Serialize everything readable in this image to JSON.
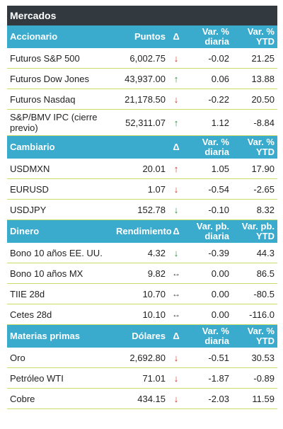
{
  "title": "Mercados",
  "sections": [
    {
      "headers": [
        "Accionario",
        "Puntos",
        "Δ",
        "Var. % diaria",
        "Var. % YTD"
      ],
      "rows": [
        {
          "name": "Futuros S&P 500",
          "value": "6,002.75",
          "arrow": "down",
          "daily": "-0.02",
          "ytd": "21.25"
        },
        {
          "name": "Futuros Dow Jones",
          "value": "43,937.00",
          "arrow": "up",
          "daily": "0.06",
          "ytd": "13.88"
        },
        {
          "name": "Futuros Nasdaq",
          "value": "21,178.50",
          "arrow": "down",
          "daily": "-0.22",
          "ytd": "20.50"
        },
        {
          "name": "S&P/BMV IPC (cierre previo)",
          "value": "52,311.07",
          "arrow": "up",
          "daily": "1.12",
          "ytd": "-8.84"
        }
      ]
    },
    {
      "headers": [
        "Cambiario",
        "",
        "Δ",
        "Var. % diaria",
        "Var. % YTD"
      ],
      "rows": [
        {
          "name": "USDMXN",
          "value": "20.01",
          "arrow": "up-red",
          "daily": "1.05",
          "ytd": "17.90"
        },
        {
          "name": "EURUSD",
          "value": "1.07",
          "arrow": "down",
          "daily": "-0.54",
          "ytd": "-2.65"
        },
        {
          "name": "USDJPY",
          "value": "152.78",
          "arrow": "down-green",
          "daily": "-0.10",
          "ytd": "8.32"
        }
      ]
    },
    {
      "headers": [
        "Dinero",
        "Rendimiento",
        "Δ",
        "Var. pb. diaria",
        "Var. pb. YTD"
      ],
      "rows": [
        {
          "name": "Bono 10 años EE. UU.",
          "value": "4.32",
          "arrow": "down-green",
          "daily": "-0.39",
          "ytd": "44.3"
        },
        {
          "name": "Bono 10 años MX",
          "value": "9.82",
          "arrow": "flat",
          "daily": "0.00",
          "ytd": "86.5"
        },
        {
          "name": "TIIE 28d",
          "value": "10.70",
          "arrow": "flat",
          "daily": "0.00",
          "ytd": "-80.5"
        },
        {
          "name": "Cetes 28d",
          "value": "10.10",
          "arrow": "flat",
          "daily": "0.00",
          "ytd": "-116.0"
        }
      ]
    },
    {
      "headers": [
        "Materias primas",
        "Dólares",
        "Δ",
        "Var. % diaria",
        "Var. % YTD"
      ],
      "rows": [
        {
          "name": "Oro",
          "value": "2,692.80",
          "arrow": "down",
          "daily": "-0.51",
          "ytd": "30.53"
        },
        {
          "name": "Petróleo WTI",
          "value": "71.01",
          "arrow": "down",
          "daily": "-1.87",
          "ytd": "-0.89"
        },
        {
          "name": "Cobre",
          "value": "434.15",
          "arrow": "down",
          "daily": "-2.03",
          "ytd": "11.59"
        }
      ]
    }
  ],
  "arrow_glyphs": {
    "up": "↑",
    "up-red": "↑",
    "down": "↓",
    "down-green": "↓",
    "flat": "↔"
  },
  "colors": {
    "header_bg": "#3aaacd",
    "title_bg": "#323a40",
    "row_border": "#c7dd6a",
    "up": "#2d8a3a",
    "down": "#c8312c"
  }
}
